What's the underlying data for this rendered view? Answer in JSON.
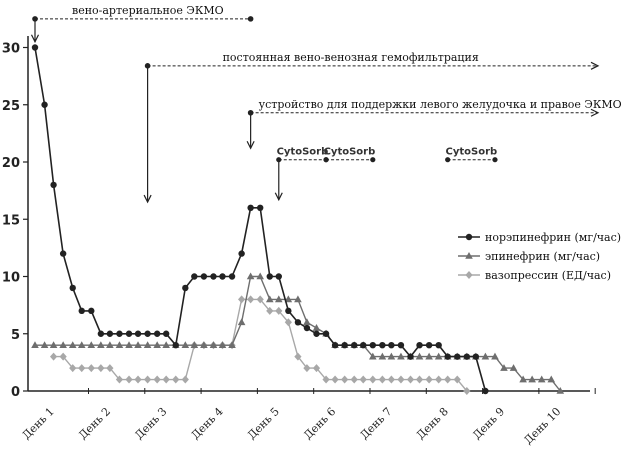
{
  "chart_data": {
    "type": "line",
    "ylim": [
      0,
      31
    ],
    "yticks": [
      0,
      5,
      10,
      15,
      20,
      25,
      30
    ],
    "xlim": [
      0,
      9.85
    ],
    "day_labels": [
      "День 1",
      "День 2",
      "День 3",
      "День 4",
      "День 5",
      "День 6",
      "День 7",
      "День 8",
      "День 9",
      "День 10"
    ],
    "series": [
      {
        "name": "норэпинефрин (мг/час)",
        "color": "#222222",
        "marker": "circle",
        "x": [
          0,
          0.17,
          0.33,
          0.5,
          0.67,
          0.83,
          1.0,
          1.17,
          1.33,
          1.5,
          1.67,
          1.83,
          2.0,
          2.17,
          2.33,
          2.5,
          2.67,
          2.83,
          3.0,
          3.17,
          3.33,
          3.5,
          3.67,
          3.83,
          4.0,
          4.17,
          4.33,
          4.5,
          4.67,
          4.83,
          5.0,
          5.17,
          5.33,
          5.5,
          5.67,
          5.83,
          6.0,
          6.17,
          6.33,
          6.5,
          6.67,
          6.83,
          7.0,
          7.17,
          7.33,
          7.5,
          7.67,
          7.83,
          8.0
        ],
        "y": [
          30,
          25,
          18,
          12,
          9,
          7,
          7,
          5,
          5,
          5,
          5,
          5,
          5,
          5,
          5,
          4,
          9,
          10,
          10,
          10,
          10,
          10,
          12,
          16,
          16,
          10,
          10,
          7,
          6,
          5.5,
          5,
          5,
          4,
          4,
          4,
          4,
          4,
          4,
          4,
          4,
          3,
          4,
          4,
          4,
          3,
          3,
          3,
          3,
          0
        ]
      },
      {
        "name": "эпинефрин (мг/час)",
        "color": "#6e6e6e",
        "marker": "triangle",
        "x": [
          0,
          0.17,
          0.33,
          0.5,
          0.67,
          0.83,
          1.0,
          1.17,
          1.33,
          1.5,
          1.67,
          1.83,
          2.0,
          2.17,
          2.33,
          2.5,
          2.67,
          2.83,
          3.0,
          3.17,
          3.33,
          3.5,
          3.67,
          3.83,
          4.0,
          4.17,
          4.33,
          4.5,
          4.67,
          4.83,
          5.0,
          5.17,
          5.33,
          5.5,
          5.67,
          5.83,
          6.0,
          6.17,
          6.33,
          6.5,
          6.67,
          6.83,
          7.0,
          7.17,
          7.33,
          7.5,
          7.67,
          7.83,
          8.0,
          8.17,
          8.33,
          8.5,
          8.67,
          8.83,
          9.0,
          9.17,
          9.33
        ],
        "y": [
          4,
          4,
          4,
          4,
          4,
          4,
          4,
          4,
          4,
          4,
          4,
          4,
          4,
          4,
          4,
          4,
          4,
          4,
          4,
          4,
          4,
          4,
          6,
          10,
          10,
          8,
          8,
          8,
          8,
          6,
          5.5,
          5,
          4,
          4,
          4,
          4,
          3,
          3,
          3,
          3,
          3,
          3,
          3,
          3,
          3,
          3,
          3,
          3,
          3,
          3,
          2,
          2,
          1,
          1,
          1,
          1,
          0
        ]
      },
      {
        "name": "вазопрессин (ЕД/час)",
        "color": "#a8a8a8",
        "marker": "diamond",
        "x": [
          0.33,
          0.5,
          0.67,
          0.83,
          1.0,
          1.17,
          1.33,
          1.5,
          1.67,
          1.83,
          2.0,
          2.17,
          2.33,
          2.5,
          2.67,
          2.83,
          3.0,
          3.17,
          3.33,
          3.5,
          3.67,
          3.83,
          4.0,
          4.17,
          4.33,
          4.5,
          4.67,
          4.83,
          5.0,
          5.17,
          5.33,
          5.5,
          5.67,
          5.83,
          6.0,
          6.17,
          6.33,
          6.5,
          6.67,
          6.83,
          7.0,
          7.17,
          7.33,
          7.5,
          7.67
        ],
        "y": [
          3,
          3,
          2,
          2,
          2,
          2,
          2,
          1,
          1,
          1,
          1,
          1,
          1,
          1,
          1,
          4,
          4,
          4,
          4,
          4,
          8,
          8,
          8,
          7,
          7,
          6,
          3,
          2,
          2,
          1,
          1,
          1,
          1,
          1,
          1,
          1,
          1,
          1,
          1,
          1,
          1,
          1,
          1,
          1,
          0
        ]
      }
    ],
    "annotations": [
      {
        "text": "вено-артериальное ЭКМО",
        "x_start": 0,
        "x_end": 3.83,
        "level": 32.5,
        "arrow_end": false,
        "drop_to": 30.5
      },
      {
        "text": "постоянная вено-венозная гемофильтрация",
        "x_start": 2.0,
        "x_end": 9.85,
        "level": 28.4,
        "arrow_end": true,
        "drop_to": 16.5
      },
      {
        "text": "устройство для поддержки левого желудочка и правое ЭКМО",
        "x_start": 3.83,
        "x_end": 9.85,
        "level": 24.3,
        "arrow_end": true,
        "drop_to": 21.2
      },
      {
        "text": "CytoSorb",
        "x_start": 4.33,
        "x_end": 5.17,
        "level": 20.2,
        "arrow_end": false,
        "drop_to": 16.7
      },
      {
        "text": "CytoSorb",
        "x_start": 5.17,
        "x_end": 6.0,
        "level": 20.2,
        "arrow_end": false,
        "drop_to": null
      },
      {
        "text": "CytoSorb",
        "x_start": 7.33,
        "x_end": 8.17,
        "level": 20.2,
        "arrow_end": false,
        "drop_to": null
      }
    ],
    "legend_position": "right"
  }
}
